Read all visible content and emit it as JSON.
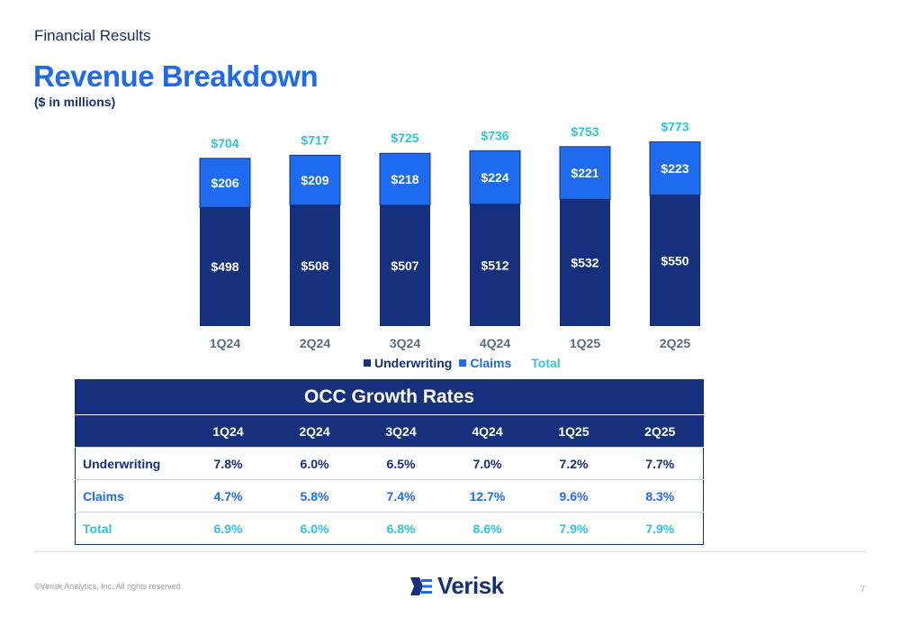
{
  "header": {
    "section": "Financial Results",
    "title": "Revenue Breakdown",
    "subtitle": "($ in millions)"
  },
  "colors": {
    "underwriting": "#15307c",
    "claims": "#1f6bf0",
    "total": "#2ec4d6"
  },
  "chart_data": {
    "type": "bar",
    "stacked": true,
    "categories": [
      "1Q24",
      "2Q24",
      "3Q24",
      "4Q24",
      "1Q25",
      "2Q25"
    ],
    "series": [
      {
        "name": "Underwriting",
        "values": [
          498,
          508,
          507,
          512,
          532,
          550
        ],
        "labels": [
          "$498",
          "$508",
          "$507",
          "$512",
          "$532",
          "$550"
        ]
      },
      {
        "name": "Claims",
        "values": [
          206,
          209,
          218,
          224,
          221,
          223
        ],
        "labels": [
          "$206",
          "$209",
          "$218",
          "$224",
          "$221",
          "$223"
        ]
      }
    ],
    "totals": [
      704,
      717,
      725,
      736,
      753,
      773
    ],
    "total_labels": [
      "$704",
      "$717",
      "$725",
      "$736",
      "$753",
      "$773"
    ],
    "legend": [
      "Underwriting",
      "Claims",
      "Total"
    ],
    "legend_position": "bottom",
    "grid": false
  },
  "occ_table": {
    "title": "OCC Growth Rates",
    "columns": [
      "1Q24",
      "2Q24",
      "3Q24",
      "4Q24",
      "1Q25",
      "2Q25"
    ],
    "rows": [
      {
        "label": "Underwriting",
        "values": [
          "7.8%",
          "6.0%",
          "6.5%",
          "7.0%",
          "7.2%",
          "7.7%"
        ]
      },
      {
        "label": "Claims",
        "values": [
          "4.7%",
          "5.8%",
          "7.4%",
          "12.7%",
          "9.6%",
          "8.3%"
        ]
      },
      {
        "label": "Total",
        "values": [
          "6.9%",
          "6.0%",
          "6.8%",
          "8.6%",
          "7.9%",
          "7.9%"
        ]
      }
    ]
  },
  "footer": {
    "copyright": "©Verisk Analytics, Inc. All rights reserved.",
    "brand": "Verisk",
    "page_number": "7"
  }
}
